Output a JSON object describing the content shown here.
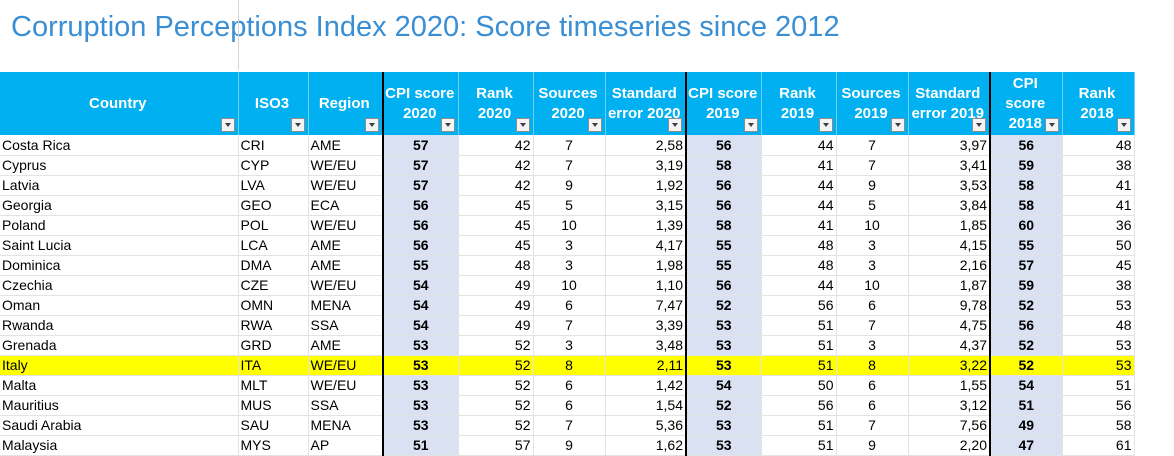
{
  "title": "Corruption Perceptions Index 2020: Score timeseries since 2012",
  "headers": [
    {
      "label": "Country"
    },
    {
      "label": "ISO3"
    },
    {
      "label": "Region"
    },
    {
      "label": "CPI score 2020"
    },
    {
      "label": "Rank 2020"
    },
    {
      "label": "Sources 2020"
    },
    {
      "label": "Standard error 2020"
    },
    {
      "label": "CPI score 2019"
    },
    {
      "label": "Rank 2019"
    },
    {
      "label": "Sources 2019"
    },
    {
      "label": "Standard error 2019"
    },
    {
      "label": "CPI score 2018"
    },
    {
      "label": "Rank 2018"
    }
  ],
  "rows": [
    [
      "Costa Rica",
      "CRI",
      "AME",
      "57",
      "42",
      "7",
      "2,58",
      "56",
      "44",
      "7",
      "3,97",
      "56",
      "48"
    ],
    [
      "Cyprus",
      "CYP",
      "WE/EU",
      "57",
      "42",
      "7",
      "3,19",
      "58",
      "41",
      "7",
      "3,41",
      "59",
      "38"
    ],
    [
      "Latvia",
      "LVA",
      "WE/EU",
      "57",
      "42",
      "9",
      "1,92",
      "56",
      "44",
      "9",
      "3,53",
      "58",
      "41"
    ],
    [
      "Georgia",
      "GEO",
      "ECA",
      "56",
      "45",
      "5",
      "3,15",
      "56",
      "44",
      "5",
      "3,84",
      "58",
      "41"
    ],
    [
      "Poland",
      "POL",
      "WE/EU",
      "56",
      "45",
      "10",
      "1,39",
      "58",
      "41",
      "10",
      "1,85",
      "60",
      "36"
    ],
    [
      "Saint Lucia",
      "LCA",
      "AME",
      "56",
      "45",
      "3",
      "4,17",
      "55",
      "48",
      "3",
      "4,15",
      "55",
      "50"
    ],
    [
      "Dominica",
      "DMA",
      "AME",
      "55",
      "48",
      "3",
      "1,98",
      "55",
      "48",
      "3",
      "2,16",
      "57",
      "45"
    ],
    [
      "Czechia",
      "CZE",
      "WE/EU",
      "54",
      "49",
      "10",
      "1,10",
      "56",
      "44",
      "10",
      "1,87",
      "59",
      "38"
    ],
    [
      "Oman",
      "OMN",
      "MENA",
      "54",
      "49",
      "6",
      "7,47",
      "52",
      "56",
      "6",
      "9,78",
      "52",
      "53"
    ],
    [
      "Rwanda",
      "RWA",
      "SSA",
      "54",
      "49",
      "7",
      "3,39",
      "53",
      "51",
      "7",
      "4,75",
      "56",
      "48"
    ],
    [
      "Grenada",
      "GRD",
      "AME",
      "53",
      "52",
      "3",
      "3,48",
      "53",
      "51",
      "3",
      "4,37",
      "52",
      "53"
    ],
    [
      "Italy",
      "ITA",
      "WE/EU",
      "53",
      "52",
      "8",
      "2,11",
      "53",
      "51",
      "8",
      "3,22",
      "52",
      "53"
    ],
    [
      "Malta",
      "MLT",
      "WE/EU",
      "53",
      "52",
      "6",
      "1,42",
      "54",
      "50",
      "6",
      "1,55",
      "54",
      "51"
    ],
    [
      "Mauritius",
      "MUS",
      "SSA",
      "53",
      "52",
      "6",
      "1,54",
      "52",
      "56",
      "6",
      "3,12",
      "51",
      "56"
    ],
    [
      "Saudi Arabia",
      "SAU",
      "MENA",
      "53",
      "52",
      "7",
      "5,36",
      "53",
      "51",
      "7",
      "7,56",
      "49",
      "58"
    ],
    [
      "Malaysia",
      "MYS",
      "AP",
      "51",
      "57",
      "9",
      "1,62",
      "53",
      "51",
      "9",
      "2,20",
      "47",
      "61"
    ]
  ],
  "highlight_row": 11,
  "colors": {
    "header_bg": "#00b0f0",
    "title": "#3a8fd4",
    "cpi_bg": "#d9e1f2",
    "highlight": "#ffff00"
  }
}
